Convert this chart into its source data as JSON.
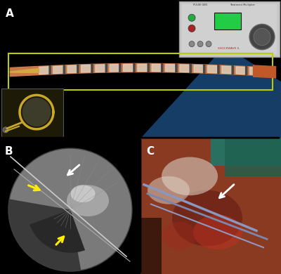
{
  "fig_width": 4.0,
  "fig_height": 3.9,
  "dpi": 100,
  "bg_color": "#1155aa",
  "panel_A": {
    "bg_color": "#1a5faa",
    "label": "A",
    "label_color": "#ffffff",
    "label_fontsize": 11,
    "label_weight": "bold",
    "catheter_rect_color": "#ccdd00",
    "catheter_body_color": "#c87848",
    "catheter_tip_color": "#d4b060",
    "highlight_color": "#e8ddd0"
  },
  "panel_B": {
    "bg_color": "#202020",
    "label": "B",
    "label_color": "#ffffff",
    "label_fontsize": 11,
    "label_weight": "bold",
    "circle_outer": "#7a7a7a",
    "circle_mid": "#909090",
    "dark_region": "#333333",
    "bright_region": "#cccccc",
    "white_arrow_color": "#ffffff",
    "yellow_arrow_color": "#ffee00"
  },
  "panel_C": {
    "bg_color": "#6b3020",
    "label": "C",
    "label_color": "#ffffff",
    "label_fontsize": 11,
    "label_weight": "bold",
    "white_arrow_color": "#ffffff",
    "tissue_colors": [
      "#8b4030",
      "#a05040",
      "#c07060",
      "#d0a080",
      "#e8ddd0",
      "#2a6050"
    ],
    "wire_color": "#8090b0"
  }
}
